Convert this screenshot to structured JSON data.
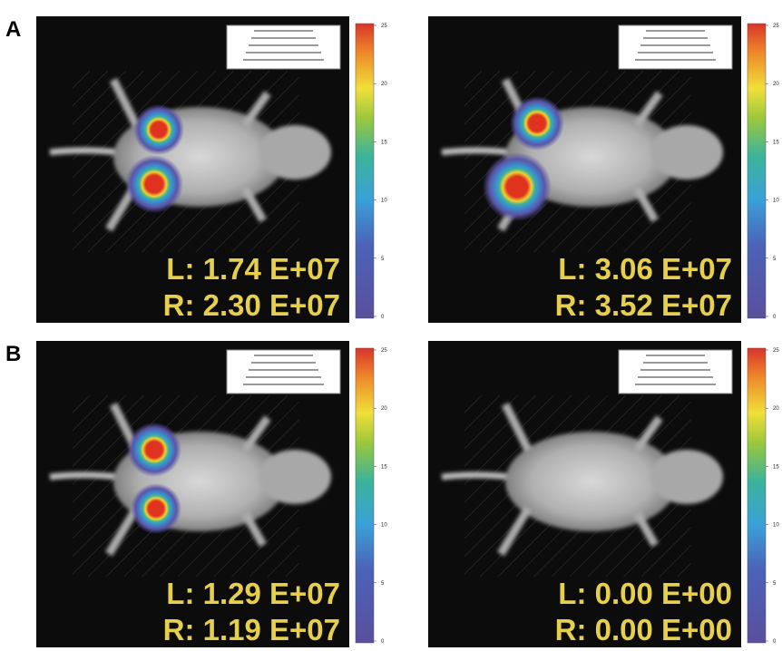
{
  "rows": [
    {
      "label": "A",
      "panels": [
        {
          "left": "L: 1.74 E+07",
          "right": "R: 2.30 E+07"
        },
        {
          "left": "L: 3.06 E+07",
          "right": "R: 3.52 E+07"
        }
      ]
    },
    {
      "label": "B",
      "panels": [
        {
          "left": "L: 1.29 E+07",
          "right": "R: 1.19 E+07"
        },
        {
          "left": "L: 0.00 E+00",
          "right": "R: 0.00 E+00"
        }
      ]
    }
  ],
  "colorbar": {
    "ticks": [
      "25",
      "20",
      "15",
      "10",
      "5",
      "0"
    ]
  }
}
